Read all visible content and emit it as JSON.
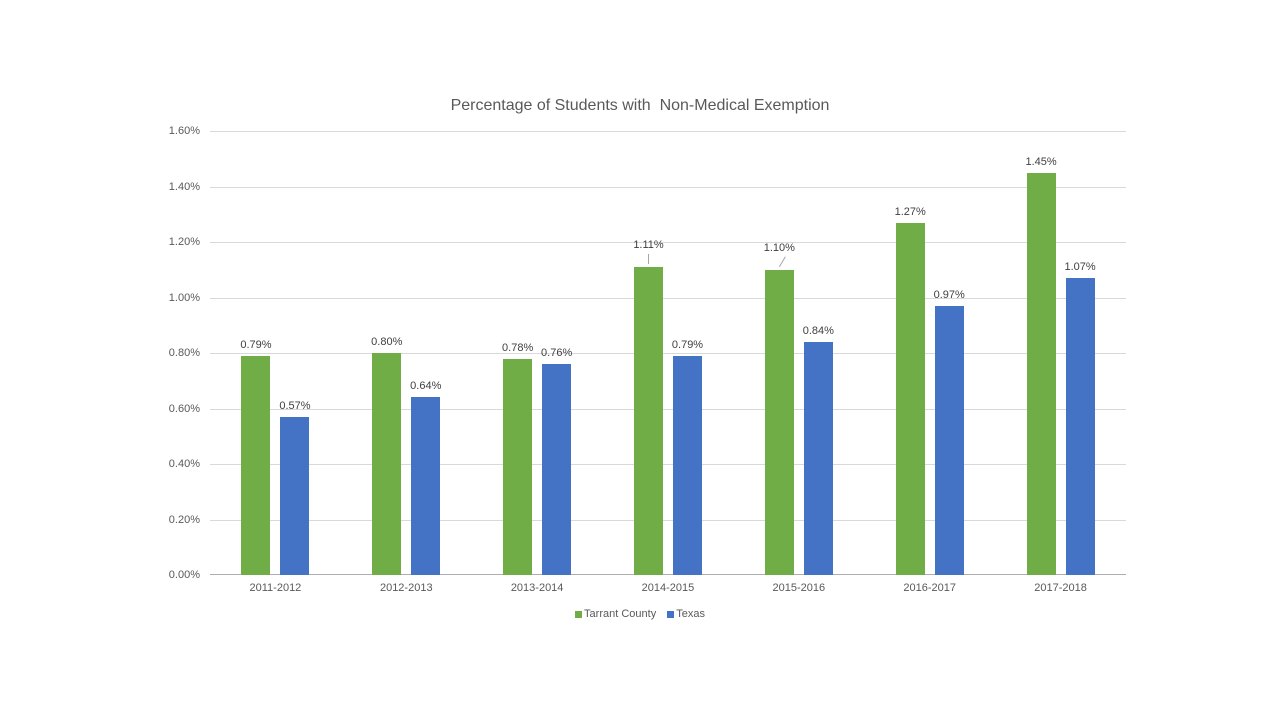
{
  "chart_data": {
    "type": "bar",
    "title": "Percentage of Students with  Non-Medical Exemption",
    "categories": [
      "2011-2012",
      "2012-2013",
      "2013-2014",
      "2014-2015",
      "2015-2016",
      "2016-2017",
      "2017-2018"
    ],
    "series": [
      {
        "name": "Tarrant County",
        "color": "#70AD47",
        "values": [
          0.79,
          0.8,
          0.78,
          1.11,
          1.1,
          1.27,
          1.45
        ],
        "data_labels": [
          "0.79%",
          "0.80%",
          "0.78%",
          "1.11%",
          "1.10%",
          "1.27%",
          "1.45%"
        ]
      },
      {
        "name": "Texas",
        "color": "#4472C4",
        "values": [
          0.57,
          0.64,
          0.76,
          0.79,
          0.84,
          0.97,
          1.07
        ],
        "data_labels": [
          "0.57%",
          "0.64%",
          "0.76%",
          "0.79%",
          "0.84%",
          "0.97%",
          "1.07%"
        ]
      }
    ],
    "ylim": [
      0,
      1.6
    ],
    "y_ticks": [
      {
        "value": 0.0,
        "label": "0.00%"
      },
      {
        "value": 0.2,
        "label": "0.20%"
      },
      {
        "value": 0.4,
        "label": "0.40%"
      },
      {
        "value": 0.6,
        "label": "0.60%"
      },
      {
        "value": 0.8,
        "label": "0.80%"
      },
      {
        "value": 1.0,
        "label": "1.00%"
      },
      {
        "value": 1.2,
        "label": "1.20%"
      },
      {
        "value": 1.4,
        "label": "1.40%"
      },
      {
        "value": 1.6,
        "label": "1.60%"
      }
    ],
    "grid": true,
    "legend_position": "bottom",
    "label_leader_lines": [
      {
        "series": 0,
        "category_index": 3,
        "shape": "vertical"
      },
      {
        "series": 0,
        "category_index": 4,
        "shape": "diagonal"
      }
    ],
    "colors": {
      "background": "#FFFFFF",
      "title_text": "#595959",
      "axis_text": "#595959",
      "data_label_text": "#404040",
      "gridline": "#D9D9D9",
      "axis_line": "#ADADAD",
      "leader_line": "#A6A6A6"
    }
  }
}
